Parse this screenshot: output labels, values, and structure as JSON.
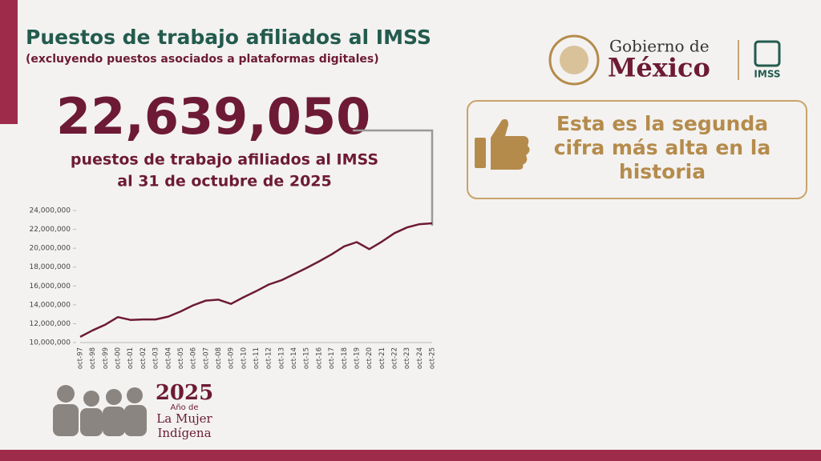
{
  "header": {
    "title": "Puestos de trabajo afiliados al IMSS",
    "subtitle": "(excluyendo puestos asociados a plataformas digitales)"
  },
  "highlight": {
    "value": "22,639,050",
    "line1": "puestos de trabajo afiliados al IMSS",
    "line2": "al 31 de octubre de 2025"
  },
  "logos": {
    "gobierno": "Gobierno de",
    "mexico": "México",
    "imss": "IMSS"
  },
  "callout": {
    "lines": [
      "Esta es la segunda",
      "cifra más alta en la",
      "historia"
    ]
  },
  "banner": {
    "year": "2025",
    "line1": "Año de",
    "line2": "La Mujer",
    "line3": "Indígena"
  },
  "chart_data": {
    "type": "line",
    "color": "#6d1a36",
    "categories": [
      "oct-97",
      "oct-98",
      "oct-99",
      "oct-00",
      "oct-01",
      "oct-02",
      "oct-03",
      "oct-04",
      "oct-05",
      "oct-06",
      "oct-07",
      "oct-08",
      "oct-09",
      "oct-10",
      "oct-11",
      "oct-12",
      "oct-13",
      "oct-14",
      "oct-15",
      "oct-16",
      "oct-17",
      "oct-18",
      "oct-19",
      "oct-20",
      "oct-21",
      "oct-22",
      "oct-23",
      "oct-24",
      "oct-25"
    ],
    "values": [
      10600000,
      11300000,
      11900000,
      12700000,
      12400000,
      12450000,
      12450000,
      12750000,
      13300000,
      13950000,
      14450000,
      14550000,
      14100000,
      14800000,
      15450000,
      16150000,
      16600000,
      17250000,
      17900000,
      18600000,
      19350000,
      20200000,
      20650000,
      19900000,
      20700000,
      21600000,
      22200000,
      22550000,
      22639050
    ],
    "ylim": [
      10000000,
      24000000
    ],
    "yticks": [
      {
        "value": 10000000,
        "label": "10,000,000"
      },
      {
        "value": 12000000,
        "label": "12,000,000"
      },
      {
        "value": 14000000,
        "label": "14,000,000"
      },
      {
        "value": 16000000,
        "label": "16,000,000"
      },
      {
        "value": 18000000,
        "label": "18,000,000"
      },
      {
        "value": 20000000,
        "label": "20,000,000"
      },
      {
        "value": 22000000,
        "label": "22,000,000"
      },
      {
        "value": 24000000,
        "label": "24,000,000"
      }
    ],
    "grid": false
  }
}
